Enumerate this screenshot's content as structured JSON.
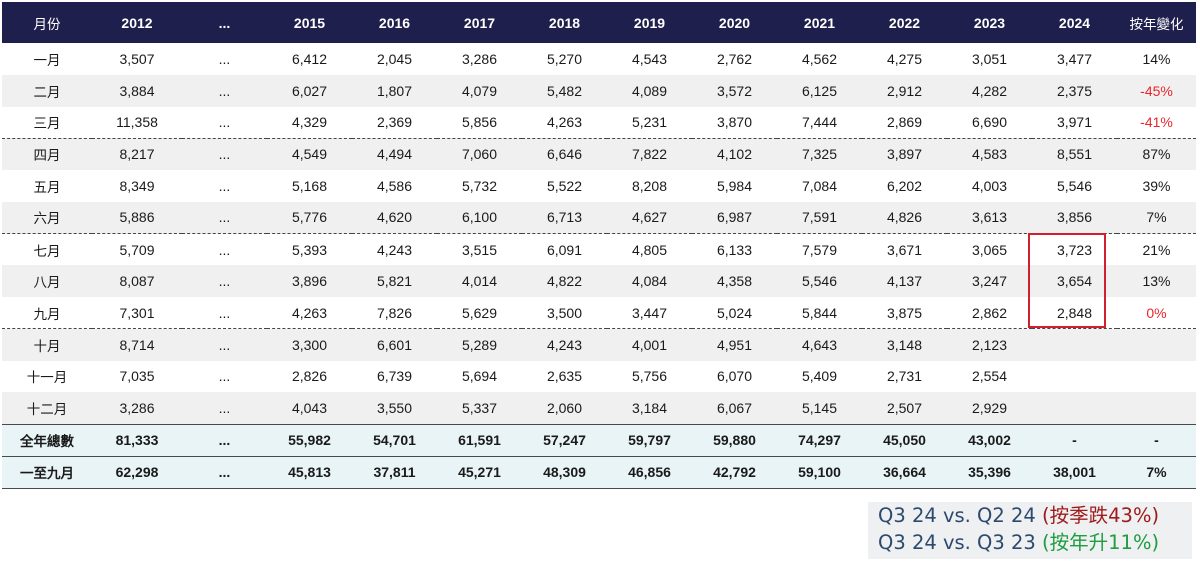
{
  "table": {
    "headers": [
      "月份",
      "2012",
      "...",
      "2015",
      "2016",
      "2017",
      "2018",
      "2019",
      "2020",
      "2021",
      "2022",
      "2023",
      "2024",
      "按年變化"
    ],
    "rows": [
      {
        "month": "一月",
        "values": [
          "3,507",
          "...",
          "6,412",
          "2,045",
          "3,286",
          "5,270",
          "4,543",
          "2,762",
          "4,562",
          "4,275",
          "3,051",
          "3,477"
        ],
        "change": "14%"
      },
      {
        "month": "二月",
        "values": [
          "3,884",
          "...",
          "6,027",
          "1,807",
          "4,079",
          "5,482",
          "4,089",
          "3,572",
          "6,125",
          "2,912",
          "4,282",
          "2,375"
        ],
        "change": "-45%"
      },
      {
        "month": "三月",
        "values": [
          "11,358",
          "...",
          "4,329",
          "2,369",
          "5,856",
          "4,263",
          "5,231",
          "3,870",
          "7,444",
          "2,869",
          "6,690",
          "3,971"
        ],
        "change": "-41%"
      },
      {
        "month": "四月",
        "values": [
          "8,217",
          "...",
          "4,549",
          "4,494",
          "7,060",
          "6,646",
          "7,822",
          "4,102",
          "7,325",
          "3,897",
          "4,583",
          "8,551"
        ],
        "change": "87%"
      },
      {
        "month": "五月",
        "values": [
          "8,349",
          "...",
          "5,168",
          "4,586",
          "5,732",
          "5,522",
          "8,208",
          "5,984",
          "7,084",
          "6,202",
          "4,003",
          "5,546"
        ],
        "change": "39%"
      },
      {
        "month": "六月",
        "values": [
          "5,886",
          "...",
          "5,776",
          "4,620",
          "6,100",
          "6,713",
          "4,627",
          "6,987",
          "7,591",
          "4,826",
          "3,613",
          "3,856"
        ],
        "change": "7%"
      },
      {
        "month": "七月",
        "values": [
          "5,709",
          "...",
          "5,393",
          "4,243",
          "3,515",
          "6,091",
          "4,805",
          "6,133",
          "7,579",
          "3,671",
          "3,065",
          "3,723"
        ],
        "change": "21%"
      },
      {
        "month": "八月",
        "values": [
          "8,087",
          "...",
          "3,896",
          "5,821",
          "4,014",
          "4,822",
          "4,084",
          "4,358",
          "5,546",
          "4,137",
          "3,247",
          "3,654"
        ],
        "change": "13%"
      },
      {
        "month": "九月",
        "values": [
          "7,301",
          "...",
          "4,263",
          "7,826",
          "5,629",
          "3,500",
          "3,447",
          "5,024",
          "5,844",
          "3,875",
          "2,862",
          "2,848"
        ],
        "change": "0%"
      },
      {
        "month": "十月",
        "values": [
          "8,714",
          "...",
          "3,300",
          "6,601",
          "5,289",
          "4,243",
          "4,001",
          "4,951",
          "4,643",
          "3,148",
          "2,123",
          ""
        ],
        "change": ""
      },
      {
        "month": "十一月",
        "values": [
          "7,035",
          "...",
          "2,826",
          "6,739",
          "5,694",
          "2,635",
          "5,756",
          "6,070",
          "5,409",
          "2,731",
          "2,554",
          ""
        ],
        "change": ""
      },
      {
        "month": "十二月",
        "values": [
          "3,286",
          "...",
          "4,043",
          "3,550",
          "5,337",
          "2,060",
          "3,184",
          "6,067",
          "5,145",
          "2,507",
          "2,929",
          ""
        ],
        "change": ""
      }
    ],
    "totals": [
      {
        "month": "全年總數",
        "values": [
          "81,333",
          "...",
          "55,982",
          "54,701",
          "61,591",
          "57,247",
          "59,797",
          "59,880",
          "74,297",
          "45,050",
          "43,002",
          "-"
        ],
        "change": "-"
      },
      {
        "month": "一至九月",
        "values": [
          "62,298",
          "...",
          "45,813",
          "37,811",
          "45,271",
          "48,309",
          "46,856",
          "42,792",
          "59,100",
          "36,664",
          "35,396",
          "38,001"
        ],
        "change": "7%"
      }
    ]
  },
  "summary": {
    "line1_main": "Q3 24 vs. Q2 24 ",
    "line1_note": "(按季跌43%)",
    "line2_main": "Q3 24 vs. Q3 23 ",
    "line2_note": "(按年升11%)"
  },
  "colors": {
    "header_bg": "#1f1f4d",
    "negative": "#e8262c",
    "highlight_box": "#d21f2f",
    "summary_down": "#a01c1c",
    "summary_up": "#1f9d40"
  }
}
